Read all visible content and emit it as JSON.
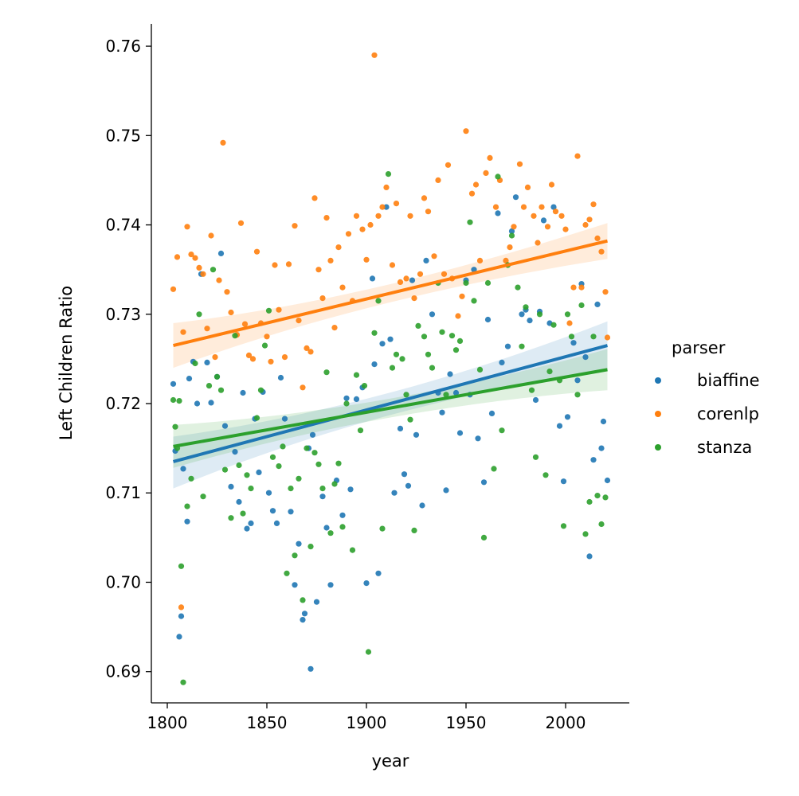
{
  "chart_data": {
    "type": "scatter",
    "xlabel": "year",
    "ylabel": "Left Children Ratio",
    "xlim": [
      1792,
      2032
    ],
    "ylim": [
      0.6865,
      0.7625
    ],
    "xticks": [
      1800,
      1850,
      1900,
      1950,
      2000
    ],
    "xtick_labels": [
      "1800",
      "1850",
      "1900",
      "1950",
      "2000"
    ],
    "yticks": [
      0.69,
      0.7,
      0.71,
      0.72,
      0.73,
      0.74,
      0.75,
      0.76
    ],
    "ytick_labels": [
      "0.69",
      "0.70",
      "0.71",
      "0.72",
      "0.73",
      "0.74",
      "0.75",
      "0.76"
    ],
    "grid": false,
    "legend": {
      "title": "parser",
      "placement": "right",
      "entries": [
        "biaffine",
        "corenlp",
        "stanza"
      ]
    },
    "series": [
      {
        "name": "biaffine",
        "color": "#1f77b4",
        "trend": {
          "x": [
            1803,
            2021
          ],
          "y": [
            0.7135,
            0.7265
          ],
          "ci_lower": [
            0.7105,
            0.7238
          ],
          "ci_upper": [
            0.7163,
            0.7292
          ]
        },
        "x": [
          1803,
          1804,
          1806,
          1807,
          1808,
          1810,
          1811,
          1813,
          1815,
          1817,
          1820,
          1822,
          1825,
          1827,
          1829,
          1832,
          1834,
          1836,
          1838,
          1840,
          1842,
          1844,
          1846,
          1848,
          1851,
          1853,
          1855,
          1857,
          1859,
          1862,
          1864,
          1866,
          1868,
          1869,
          1871,
          1872,
          1873,
          1875,
          1878,
          1880,
          1882,
          1885,
          1888,
          1890,
          1892,
          1895,
          1898,
          1900,
          1903,
          1904,
          1906,
          1908,
          1910,
          1912,
          1914,
          1917,
          1919,
          1921,
          1923,
          1925,
          1928,
          1930,
          1933,
          1936,
          1938,
          1940,
          1942,
          1945,
          1947,
          1950,
          1952,
          1954,
          1956,
          1959,
          1961,
          1963,
          1966,
          1968,
          1971,
          1973,
          1975,
          1978,
          1980,
          1982,
          1985,
          1987,
          1989,
          1992,
          1994,
          1997,
          1999,
          2001,
          2004,
          2006,
          2008,
          2010,
          2012,
          2014,
          2016,
          2018,
          2019,
          2021
        ],
        "y": [
          0.7222,
          0.7147,
          0.6939,
          0.6962,
          0.7127,
          0.7068,
          0.7228,
          0.7247,
          0.72,
          0.7345,
          0.7246,
          0.7201,
          0.723,
          0.7368,
          0.7175,
          0.7107,
          0.7146,
          0.709,
          0.7212,
          0.706,
          0.7066,
          0.7183,
          0.7123,
          0.7213,
          0.71,
          0.708,
          0.7066,
          0.7229,
          0.7183,
          0.7079,
          0.6997,
          0.7043,
          0.6958,
          0.6965,
          0.715,
          0.6903,
          0.7165,
          0.6978,
          0.7096,
          0.7061,
          0.6997,
          0.7114,
          0.7075,
          0.7206,
          0.7104,
          0.7205,
          0.7218,
          0.6999,
          0.734,
          0.7244,
          0.701,
          0.7267,
          0.742,
          0.7272,
          0.71,
          0.7172,
          0.7121,
          0.7108,
          0.7338,
          0.7165,
          0.7086,
          0.736,
          0.73,
          0.7212,
          0.719,
          0.7103,
          0.7233,
          0.7212,
          0.7167,
          0.7338,
          0.721,
          0.735,
          0.7161,
          0.7112,
          0.7294,
          0.7189,
          0.7413,
          0.7246,
          0.7264,
          0.7393,
          0.7431,
          0.73,
          0.7305,
          0.7293,
          0.7204,
          0.7303,
          0.7405,
          0.729,
          0.742,
          0.7175,
          0.7113,
          0.7185,
          0.7268,
          0.7226,
          0.7334,
          0.7252,
          0.7029,
          0.7137,
          0.7311,
          0.715,
          0.718,
          0.7114
        ]
      },
      {
        "name": "corenlp",
        "color": "#ff7f0e",
        "trend": {
          "x": [
            1803,
            2021
          ],
          "y": [
            0.7265,
            0.7382
          ],
          "ci_lower": [
            0.724,
            0.7362
          ],
          "ci_upper": [
            0.729,
            0.7402
          ]
        },
        "x": [
          1803,
          1805,
          1807,
          1808,
          1810,
          1812,
          1814,
          1816,
          1818,
          1820,
          1822,
          1824,
          1826,
          1828,
          1830,
          1832,
          1835,
          1837,
          1839,
          1841,
          1843,
          1845,
          1847,
          1850,
          1852,
          1854,
          1856,
          1859,
          1861,
          1864,
          1866,
          1868,
          1870,
          1872,
          1874,
          1876,
          1878,
          1880,
          1882,
          1884,
          1886,
          1888,
          1891,
          1893,
          1895,
          1898,
          1900,
          1902,
          1904,
          1906,
          1908,
          1910,
          1913,
          1915,
          1917,
          1920,
          1922,
          1924,
          1927,
          1929,
          1931,
          1934,
          1936,
          1939,
          1941,
          1943,
          1946,
          1948,
          1950,
          1953,
          1955,
          1957,
          1960,
          1962,
          1965,
          1967,
          1970,
          1972,
          1974,
          1977,
          1979,
          1981,
          1984,
          1986,
          1988,
          1991,
          1993,
          1995,
          1998,
          2000,
          2002,
          2004,
          2006,
          2008,
          2010,
          2012,
          2014,
          2016,
          2018,
          2020,
          2021
        ],
        "y": [
          0.7328,
          0.7364,
          0.6972,
          0.728,
          0.7398,
          0.7367,
          0.7363,
          0.7352,
          0.7345,
          0.7284,
          0.7388,
          0.7252,
          0.7338,
          0.7492,
          0.7325,
          0.7302,
          0.7277,
          0.7402,
          0.7289,
          0.7254,
          0.725,
          0.737,
          0.729,
          0.7275,
          0.7247,
          0.7355,
          0.7305,
          0.7252,
          0.7356,
          0.7399,
          0.7293,
          0.7218,
          0.7262,
          0.7258,
          0.743,
          0.735,
          0.7318,
          0.7408,
          0.736,
          0.7285,
          0.7375,
          0.733,
          0.739,
          0.7315,
          0.741,
          0.7395,
          0.7361,
          0.74,
          0.759,
          0.741,
          0.742,
          0.7442,
          0.7355,
          0.7424,
          0.7336,
          0.734,
          0.741,
          0.7318,
          0.7345,
          0.743,
          0.7415,
          0.7365,
          0.745,
          0.7345,
          0.7467,
          0.734,
          0.7298,
          0.732,
          0.7505,
          0.7435,
          0.7445,
          0.736,
          0.7458,
          0.7475,
          0.742,
          0.745,
          0.736,
          0.7375,
          0.7398,
          0.7468,
          0.742,
          0.7442,
          0.741,
          0.738,
          0.742,
          0.7398,
          0.7445,
          0.7415,
          0.741,
          0.7395,
          0.729,
          0.733,
          0.7477,
          0.733,
          0.74,
          0.7406,
          0.7423,
          0.7385,
          0.737,
          0.7325,
          0.7274
        ]
      },
      {
        "name": "stanza",
        "color": "#2ca02c",
        "trend": {
          "x": [
            1803,
            2021
          ],
          "y": [
            0.7152,
            0.7238
          ],
          "ci_lower": [
            0.7128,
            0.7215
          ],
          "ci_upper": [
            0.7176,
            0.7261
          ]
        },
        "x": [
          1803,
          1804,
          1805,
          1806,
          1807,
          1808,
          1810,
          1812,
          1814,
          1816,
          1818,
          1821,
          1823,
          1825,
          1827,
          1829,
          1832,
          1834,
          1836,
          1838,
          1840,
          1842,
          1845,
          1847,
          1849,
          1851,
          1853,
          1856,
          1858,
          1860,
          1862,
          1864,
          1866,
          1868,
          1870,
          1872,
          1874,
          1876,
          1878,
          1880,
          1882,
          1884,
          1886,
          1888,
          1890,
          1893,
          1895,
          1897,
          1899,
          1901,
          1904,
          1906,
          1908,
          1911,
          1913,
          1915,
          1918,
          1920,
          1922,
          1924,
          1926,
          1929,
          1931,
          1933,
          1936,
          1938,
          1940,
          1943,
          1945,
          1947,
          1950,
          1952,
          1954,
          1957,
          1959,
          1961,
          1964,
          1966,
          1968,
          1971,
          1973,
          1976,
          1978,
          1980,
          1983,
          1985,
          1987,
          1990,
          1992,
          1994,
          1997,
          1999,
          2001,
          2003,
          2006,
          2008,
          2010,
          2012,
          2014,
          2016,
          2018,
          2020
        ],
        "y": [
          0.7204,
          0.7174,
          0.715,
          0.7203,
          0.7018,
          0.6888,
          0.7085,
          0.7116,
          0.7245,
          0.73,
          0.7096,
          0.722,
          0.735,
          0.723,
          0.7215,
          0.7126,
          0.7072,
          0.7276,
          0.7131,
          0.7077,
          0.712,
          0.7105,
          0.7184,
          0.7215,
          0.7265,
          0.7304,
          0.714,
          0.713,
          0.7152,
          0.701,
          0.7105,
          0.703,
          0.7116,
          0.698,
          0.715,
          0.704,
          0.7145,
          0.7132,
          0.7105,
          0.7235,
          0.7055,
          0.711,
          0.7133,
          0.7062,
          0.72,
          0.7036,
          0.7232,
          0.717,
          0.722,
          0.6922,
          0.7279,
          0.7315,
          0.706,
          0.7457,
          0.724,
          0.7255,
          0.725,
          0.721,
          0.7182,
          0.7058,
          0.7287,
          0.7275,
          0.7255,
          0.724,
          0.7335,
          0.728,
          0.721,
          0.7276,
          0.726,
          0.727,
          0.7335,
          0.7403,
          0.7315,
          0.7238,
          0.705,
          0.7335,
          0.7127,
          0.7454,
          0.717,
          0.7355,
          0.7388,
          0.733,
          0.7264,
          0.7308,
          0.7215,
          0.714,
          0.73,
          0.712,
          0.7236,
          0.7288,
          0.7226,
          0.7063,
          0.73,
          0.7275,
          0.721,
          0.731,
          0.7054,
          0.709,
          0.7275,
          0.7097,
          0.7065,
          0.7095
        ]
      }
    ]
  }
}
